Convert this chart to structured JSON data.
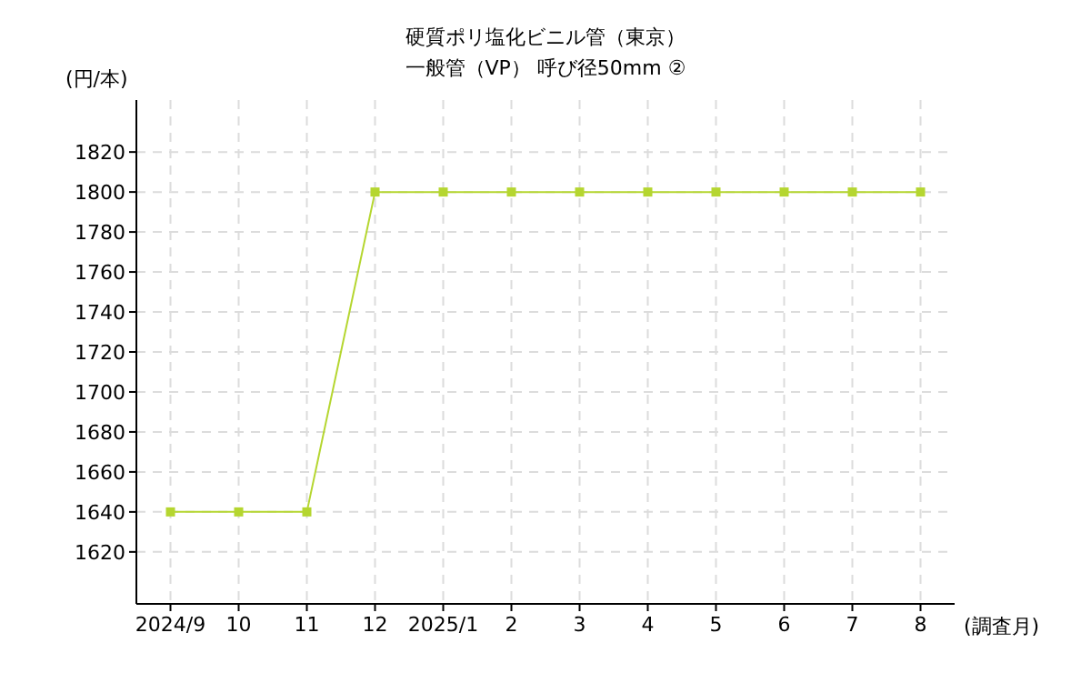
{
  "chart_data": {
    "type": "line",
    "title": "硬質ポリ塩化ビニル管（東京）",
    "subtitle": "一般管（VP） 呼び径50mm ②",
    "ylabel": "(円/本)",
    "xlabel": "(調査月)",
    "categories": [
      "2024/9",
      "10",
      "11",
      "12",
      "2025/1",
      "2",
      "3",
      "4",
      "5",
      "6",
      "7",
      "8"
    ],
    "series": [
      {
        "color": "#b5d630",
        "values": [
          1640,
          1640,
          1640,
          1800,
          1800,
          1800,
          1800,
          1800,
          1800,
          1800,
          1800,
          1800
        ]
      }
    ],
    "ylim": [
      1594,
      1846
    ],
    "yticks": [
      1620,
      1640,
      1660,
      1680,
      1700,
      1720,
      1740,
      1760,
      1780,
      1800,
      1820
    ],
    "grid": true,
    "marker": "square",
    "line_style": "solid"
  }
}
